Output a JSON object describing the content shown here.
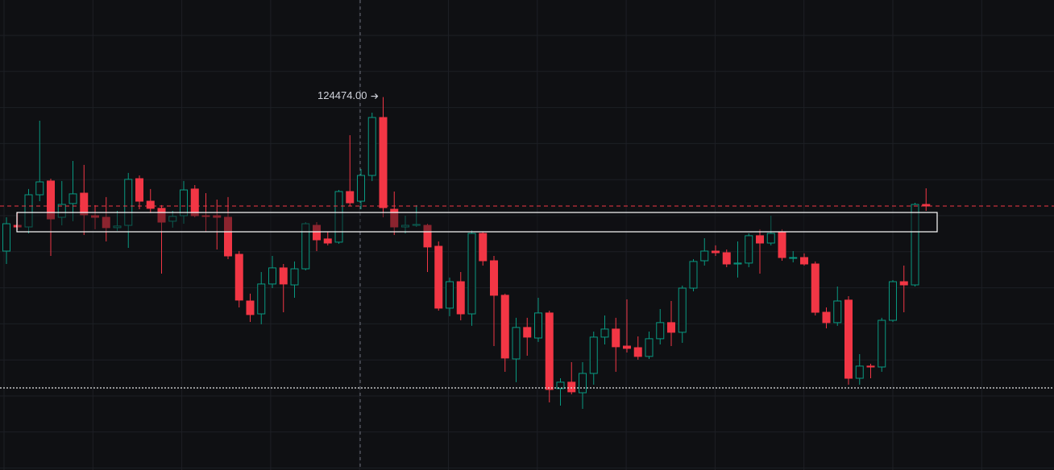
{
  "chart_data": {
    "type": "candlestick",
    "annotation": "124474.00",
    "up_color": "#089981",
    "down_color": "#f23645",
    "ylim": [
      103620,
      129900
    ],
    "open": [
      115860,
      117300,
      117210,
      119010,
      119780,
      117750,
      118520,
      119100,
      117840,
      117750,
      117170,
      117300,
      119910,
      118650,
      118250,
      117530,
      117840,
      119330,
      117840,
      117840,
      117750,
      115680,
      113070,
      112350,
      114020,
      114920,
      113970,
      114870,
      117300,
      116540,
      116360,
      119190,
      118650,
      120090,
      123330,
      118200,
      117210,
      117300,
      117300,
      116130,
      112670,
      114150,
      112350,
      116850,
      115320,
      113390,
      109830,
      111590,
      111000,
      112400,
      108170,
      108530,
      107940,
      109020,
      111050,
      111500,
      110550,
      110460,
      109970,
      110960,
      111860,
      111320,
      113790,
      115320,
      115860,
      115770,
      115140,
      115190,
      116720,
      116310,
      116900,
      115460,
      115500,
      115140,
      112440,
      111860,
      113120,
      108750,
      109430,
      109380,
      111990,
      114150,
      113970,
      118470
    ],
    "high": [
      117750,
      118020,
      119330,
      123150,
      119910,
      119780,
      120900,
      120680,
      118430,
      118880,
      118110,
      120230,
      120090,
      119330,
      118430,
      118110,
      119780,
      119550,
      119100,
      118740,
      118880,
      115860,
      113480,
      114690,
      115590,
      115140,
      115280,
      117480,
      117480,
      116940,
      119280,
      122340,
      120450,
      123600,
      124474,
      119190,
      117840,
      118430,
      117390,
      116400,
      114380,
      114690,
      117030,
      116940,
      115590,
      113480,
      112130,
      112130,
      113250,
      112530,
      108750,
      109650,
      109650,
      111360,
      112260,
      112130,
      113160,
      111090,
      111360,
      112620,
      113070,
      113930,
      115410,
      116580,
      116180,
      115950,
      116400,
      116850,
      117080,
      117840,
      117080,
      115860,
      115730,
      115280,
      112710,
      113880,
      113340,
      110100,
      109560,
      112130,
      114240,
      115050,
      118560,
      119370
    ],
    "low": [
      115140,
      117030,
      116850,
      118650,
      115590,
      117300,
      117530,
      116760,
      117080,
      116400,
      116990,
      116040,
      118200,
      117980,
      114600,
      117170,
      117390,
      117750,
      116940,
      115950,
      115410,
      112710,
      111900,
      111770,
      113790,
      112440,
      113250,
      114780,
      115860,
      116180,
      116270,
      118380,
      118200,
      119780,
      117750,
      116760,
      116850,
      117210,
      114690,
      112530,
      112220,
      111990,
      111680,
      115050,
      110550,
      109110,
      108530,
      110010,
      110780,
      107400,
      107220,
      107850,
      107040,
      108390,
      110640,
      109110,
      110190,
      109790,
      109830,
      110640,
      110550,
      110730,
      113610,
      115050,
      115590,
      114960,
      114380,
      114960,
      114600,
      116180,
      115320,
      115230,
      115050,
      112260,
      111540,
      111680,
      108390,
      108390,
      108750,
      109110,
      111900,
      112440,
      113880,
      118110
    ],
    "close": [
      117390,
      117210,
      119010,
      119730,
      117660,
      118470,
      119060,
      117890,
      117750,
      117170,
      117260,
      119870,
      118650,
      118250,
      117480,
      117800,
      119280,
      117840,
      117800,
      117750,
      115590,
      113120,
      112310,
      114020,
      114920,
      114020,
      114870,
      117390,
      116490,
      116310,
      119190,
      118560,
      120090,
      123330,
      118290,
      117210,
      117300,
      117350,
      116090,
      112670,
      114150,
      112350,
      116850,
      115320,
      113390,
      109880,
      111590,
      111050,
      112400,
      108120,
      108530,
      107990,
      109020,
      111050,
      111500,
      110510,
      110420,
      109970,
      110960,
      111860,
      111320,
      113790,
      115280,
      115860,
      115770,
      115140,
      115190,
      116720,
      116310,
      116850,
      115500,
      115500,
      115140,
      112440,
      111860,
      113070,
      108750,
      109430,
      109380,
      111990,
      114150,
      113970,
      118470,
      118380
    ],
    "zone": [
      118020,
      116940
    ],
    "support_line": 108210
  }
}
